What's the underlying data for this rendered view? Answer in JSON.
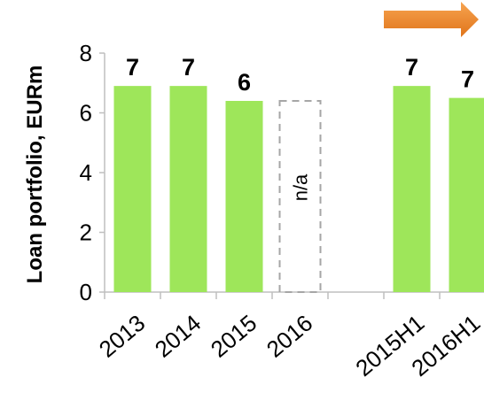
{
  "chart_data": {
    "type": "bar",
    "categories": [
      "2013",
      "2014",
      "2015",
      "2016",
      "",
      "2015H1",
      "2016H1"
    ],
    "values": [
      6.9,
      6.9,
      6.4,
      null,
      null,
      6.9,
      6.5
    ],
    "data_labels": [
      "7",
      "7",
      "6",
      "",
      "",
      "7",
      "7"
    ],
    "placeholder": {
      "category": "2016",
      "value": 6.4,
      "label": "n/a"
    },
    "ylabel": "Loan portfolio, EURm",
    "ylim": [
      0,
      8
    ],
    "yticks": [
      0,
      2,
      4,
      6,
      8
    ],
    "grid": false,
    "legend": "none",
    "colors": {
      "bar": "#9ee65a",
      "placeholder_border": "#a6a6a6",
      "axis": "#bfbfbf",
      "arrow": "#f08a24"
    },
    "arrow_icon": "trend-arrow-icon"
  }
}
